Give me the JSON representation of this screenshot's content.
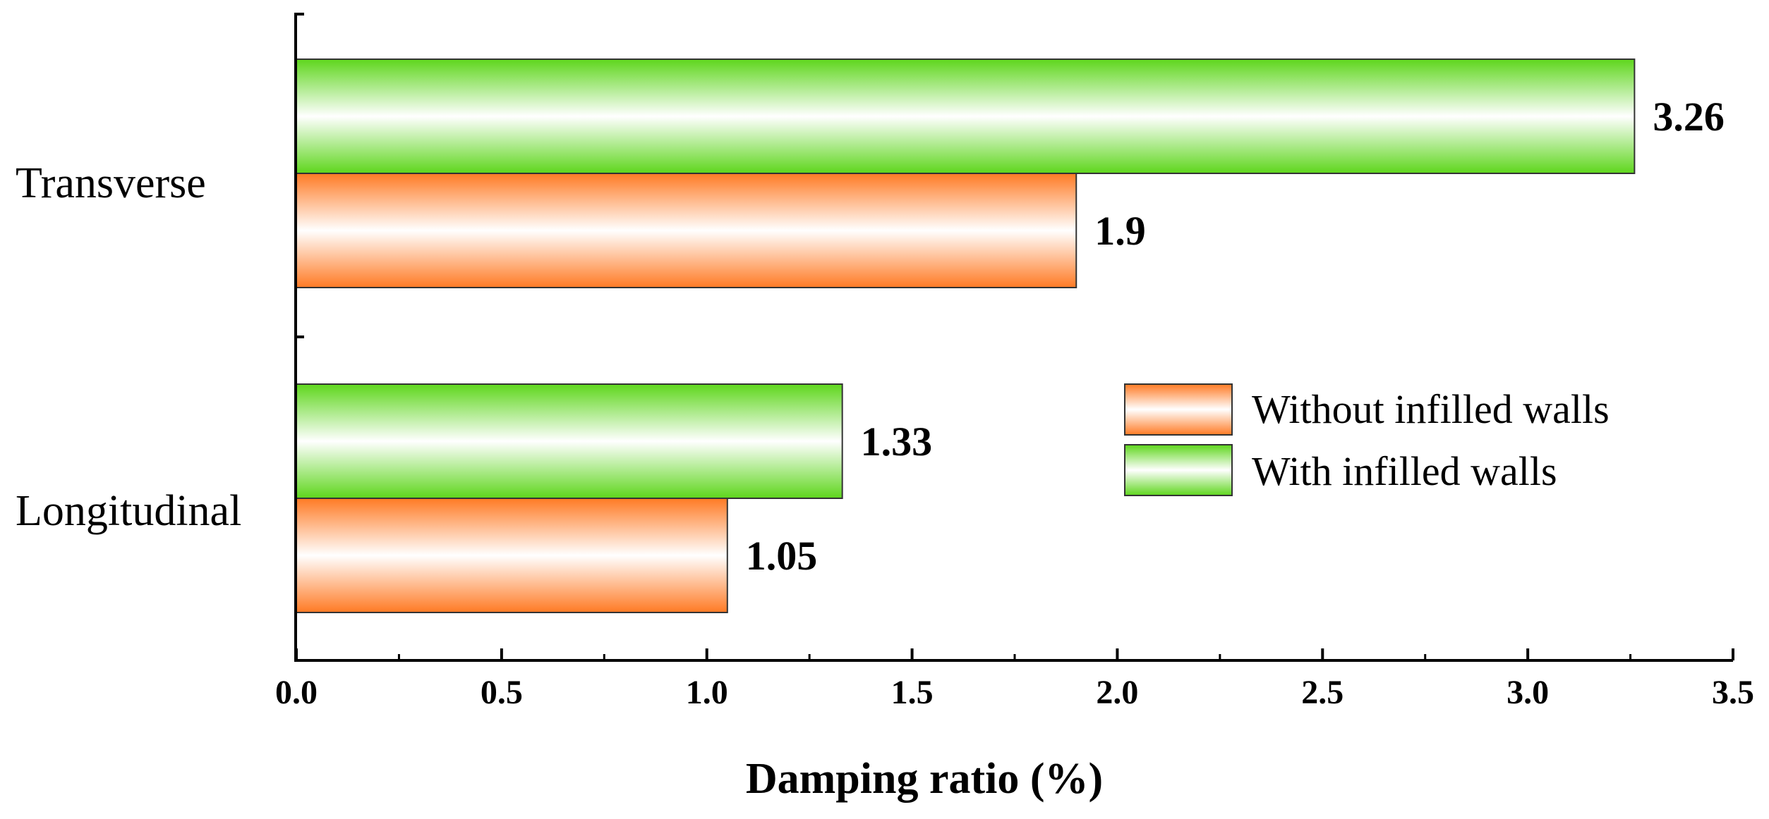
{
  "chart_data": {
    "type": "bar",
    "orientation": "horizontal",
    "title": "",
    "xlabel": "Damping ratio (%)",
    "ylabel": "",
    "xlim": [
      0.0,
      3.5
    ],
    "x_ticks": [
      "0.0",
      "0.5",
      "1.0",
      "1.5",
      "2.0",
      "2.5",
      "3.0",
      "3.5"
    ],
    "categories": [
      "Transverse",
      "Longitudinal"
    ],
    "series": [
      {
        "name": "With infilled walls",
        "values": [
          3.26,
          1.33
        ],
        "value_labels": [
          "3.26",
          "1.33"
        ],
        "color": "#66dd22"
      },
      {
        "name": "Without infilled walls",
        "values": [
          1.9,
          1.05
        ],
        "value_labels": [
          "1.9",
          "1.05"
        ],
        "color": "#ff7f2a"
      }
    ],
    "legend": {
      "placement": "center-right",
      "entries": [
        "Without infilled walls",
        "With infilled walls"
      ]
    }
  }
}
